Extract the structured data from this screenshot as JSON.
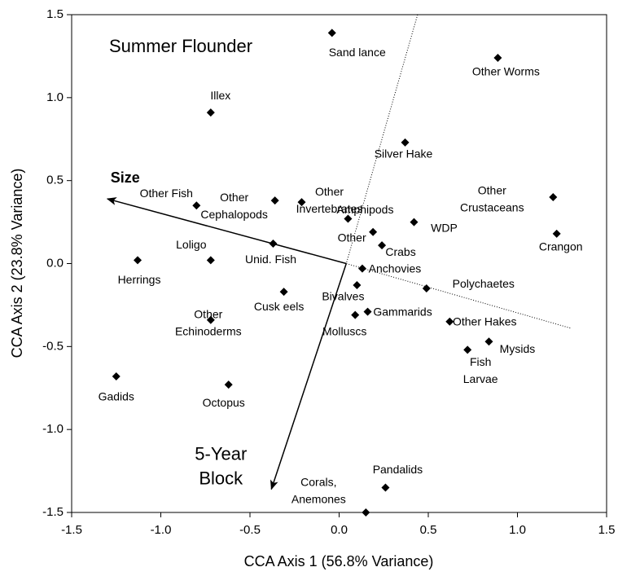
{
  "chart_data": {
    "type": "scatter",
    "title": "Summer Flounder",
    "x_label": "CCA Axis 1 (56.8% Variance)",
    "y_label": "CCA Axis 2 (23.8% Variance)",
    "xlim": [
      -1.5,
      1.5
    ],
    "ylim": [
      -1.5,
      1.5
    ],
    "xticks": [
      -1.5,
      {
        "value": -1.0,
        "label": "-1.0"
      },
      -0.5,
      {
        "value": 0.0,
        "label": "0.0"
      },
      0.5,
      {
        "value": 1.0,
        "label": "1.0"
      },
      1.5
    ],
    "yticks": [
      -1.5,
      {
        "value": -1.0,
        "label": "-1.0"
      },
      -0.5,
      {
        "value": 0.0,
        "label": "0.0"
      },
      0.5,
      {
        "value": 1.0,
        "label": "1.0"
      },
      1.5
    ],
    "color": "#000000",
    "points": [
      {
        "label": [
          "Sand lance"
        ],
        "x": -0.04,
        "y": 1.39
      },
      {
        "label": [
          "Other Worms"
        ],
        "x": 0.89,
        "y": 1.24
      },
      {
        "label": [
          "Illex"
        ],
        "x": -0.72,
        "y": 0.91
      },
      {
        "label": [
          "Silver Hake"
        ],
        "x": 0.37,
        "y": 0.73
      },
      {
        "label": [
          "Other Fish"
        ],
        "x": -0.8,
        "y": 0.35
      },
      {
        "label": [
          "Other",
          "Cephalopods"
        ],
        "x": -0.36,
        "y": 0.38
      },
      {
        "label": [
          "Other",
          "Invertebrates"
        ],
        "x": -0.21,
        "y": 0.37
      },
      {
        "label": [
          "Other",
          "Crustaceans"
        ],
        "x": 1.2,
        "y": 0.4
      },
      {
        "label": [
          "Amphipods"
        ],
        "x": 0.05,
        "y": 0.27
      },
      {
        "label": [
          "Other"
        ],
        "x": 0.19,
        "y": 0.19
      },
      {
        "label": [
          "WDP"
        ],
        "x": 0.42,
        "y": 0.25
      },
      {
        "label": [
          "Crabs"
        ],
        "x": 0.24,
        "y": 0.11
      },
      {
        "label": [
          "Crangon"
        ],
        "x": 1.22,
        "y": 0.18
      },
      {
        "label": [
          "Unid. Fish"
        ],
        "x": -0.37,
        "y": 0.12
      },
      {
        "label": [
          "Loligo"
        ],
        "x": -0.72,
        "y": 0.02
      },
      {
        "label": [
          "Herrings"
        ],
        "x": -1.13,
        "y": 0.02
      },
      {
        "label": [
          "Anchovies"
        ],
        "x": 0.13,
        "y": -0.03
      },
      {
        "label": [
          "Cusk eels"
        ],
        "x": -0.31,
        "y": -0.17
      },
      {
        "label": [
          "Bivalves"
        ],
        "x": 0.1,
        "y": -0.13
      },
      {
        "label": [
          "Polychaetes"
        ],
        "x": 0.49,
        "y": -0.15
      },
      {
        "label": [
          "Gammarids"
        ],
        "x": 0.16,
        "y": -0.29
      },
      {
        "label": [
          "Molluscs"
        ],
        "x": 0.09,
        "y": -0.31
      },
      {
        "label": [
          "Other",
          "Echinoderms"
        ],
        "x": -0.72,
        "y": -0.34
      },
      {
        "label": [
          "Other Hakes"
        ],
        "x": 0.62,
        "y": -0.35
      },
      {
        "label": [
          "Mysids"
        ],
        "x": 0.84,
        "y": -0.47
      },
      {
        "label": [
          "Fish",
          "Larvae"
        ],
        "x": 0.72,
        "y": -0.52
      },
      {
        "label": [
          "Gadids"
        ],
        "x": -1.25,
        "y": -0.68
      },
      {
        "label": [
          "Octopus"
        ],
        "x": -0.62,
        "y": -0.73
      },
      {
        "label": [
          "Pandalids"
        ],
        "x": 0.26,
        "y": -1.35
      },
      {
        "label": [
          "Corals,",
          "Anemones"
        ],
        "x": 0.15,
        "y": -1.5
      }
    ],
    "vectors": [
      {
        "label": [
          "Size"
        ],
        "x": [
          0.04,
          -1.3
        ],
        "y": [
          0.0,
          0.39
        ]
      },
      {
        "label": [
          "5-Year",
          "Block"
        ],
        "x": [
          0.04,
          -0.38
        ],
        "y": [
          0.0,
          -1.36
        ]
      }
    ],
    "reference_line": {
      "x": [
        0.44,
        0.04,
        1.3
      ],
      "y": [
        1.5,
        0.0,
        -0.39
      ]
    }
  }
}
